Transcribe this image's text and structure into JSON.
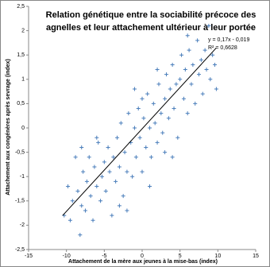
{
  "chart_data": {
    "type": "scatter",
    "title": [
      "Relation génétique entre la sociabilité précoce des",
      "agnelles et leur attachement ultérieur à leur portée"
    ],
    "annotations": [
      "y = 0,17x - 0,019",
      "R² = 0,6628"
    ],
    "x_label": "Attachement de la mère aux jeunes à la mise-bas (index)",
    "y_label": "Attachement aux congénères après sevrage (index)",
    "color": "#4a7ebb",
    "x": [
      -10.3,
      -9.8,
      -9.5,
      -9.2,
      -8.8,
      -8.5,
      -8.2,
      -8,
      -7.8,
      -7.5,
      -7.3,
      -7,
      -6.8,
      -6.5,
      -6.3,
      -6,
      -5.8,
      -5.5,
      -5.3,
      -5,
      -4.8,
      -4.5,
      -4.3,
      -4,
      -3.8,
      -3.5,
      -3.3,
      -3,
      -2.8,
      -2.5,
      -2.3,
      -2,
      -1.8,
      -1.5,
      -1.3,
      -1,
      -0.8,
      -0.5,
      -0.3,
      0,
      0.2,
      0.5,
      0.7,
      1,
      1.2,
      1.5,
      1.7,
      2,
      2.2,
      2.5,
      2.7,
      3,
      3.2,
      3.5,
      3.7,
      4,
      4.2,
      4.5,
      4.7,
      5,
      5.2,
      5.5,
      5.7,
      6,
      6.2,
      6.5,
      6.7,
      7,
      7.3,
      7.5,
      7.8,
      8,
      8.3,
      8.5,
      8.8,
      9,
      9.3,
      9.6,
      9.8,
      -6,
      -3,
      0,
      3,
      6,
      -8,
      2,
      -2,
      4,
      1,
      -1
    ],
    "values": [
      -1.8,
      -1.2,
      -1.9,
      -1.5,
      -0.6,
      -1.3,
      -2.2,
      -1.6,
      -0.9,
      -1.7,
      -1.1,
      -0.6,
      -1.4,
      -1.9,
      -0.8,
      -1.2,
      -0.3,
      -1.5,
      -1,
      -0.7,
      -1.3,
      -0.4,
      -0.9,
      -1.8,
      -0.6,
      -1.1,
      -0.2,
      -0.8,
      0.1,
      -1.4,
      -0.5,
      -0.9,
      0.3,
      -0.3,
      -1,
      0,
      -0.6,
      0.4,
      -0.2,
      -0.9,
      0.2,
      -0.4,
      0.7,
      0,
      -0.6,
      0.5,
      0.1,
      -0.3,
      0.9,
      0.3,
      -0.1,
      0.6,
      1.1,
      0.2,
      0.8,
      1.3,
      0.4,
      0.9,
      -0.2,
      1,
      1.5,
      0.6,
      1.2,
      0.3,
      1.6,
      0.9,
      1.3,
      0.5,
      1.8,
      1.1,
      1.4,
      0.7,
      1.6,
      1.2,
      2.1,
      1,
      1.5,
      1.3,
      0.8,
      -0.2,
      -1.6,
      0.6,
      -0.5,
      1.9,
      -0.4,
      1.2,
      -1.7,
      -0.6,
      -1.2,
      0.8
    ],
    "trendline": {
      "x": [
        -10.5,
        9.8
      ],
      "y": [
        -1.8,
        1.647
      ]
    },
    "xlim": [
      -15,
      15
    ],
    "xticks": [
      -15,
      -10,
      -5,
      0,
      5,
      10,
      15
    ],
    "ylim": [
      -2.5,
      2.5
    ],
    "yticks": [
      {
        "value": -2.5,
        "label": "-2,5"
      },
      -2,
      {
        "value": -1.5,
        "label": "-1,5"
      },
      -1,
      {
        "value": -0.5,
        "label": "-0,5"
      },
      0,
      {
        "value": 0.5,
        "label": "0,5"
      },
      1,
      {
        "value": 1.5,
        "label": "1,5"
      },
      2,
      {
        "value": 2.5,
        "label": "2,5"
      }
    ],
    "grid": false
  }
}
